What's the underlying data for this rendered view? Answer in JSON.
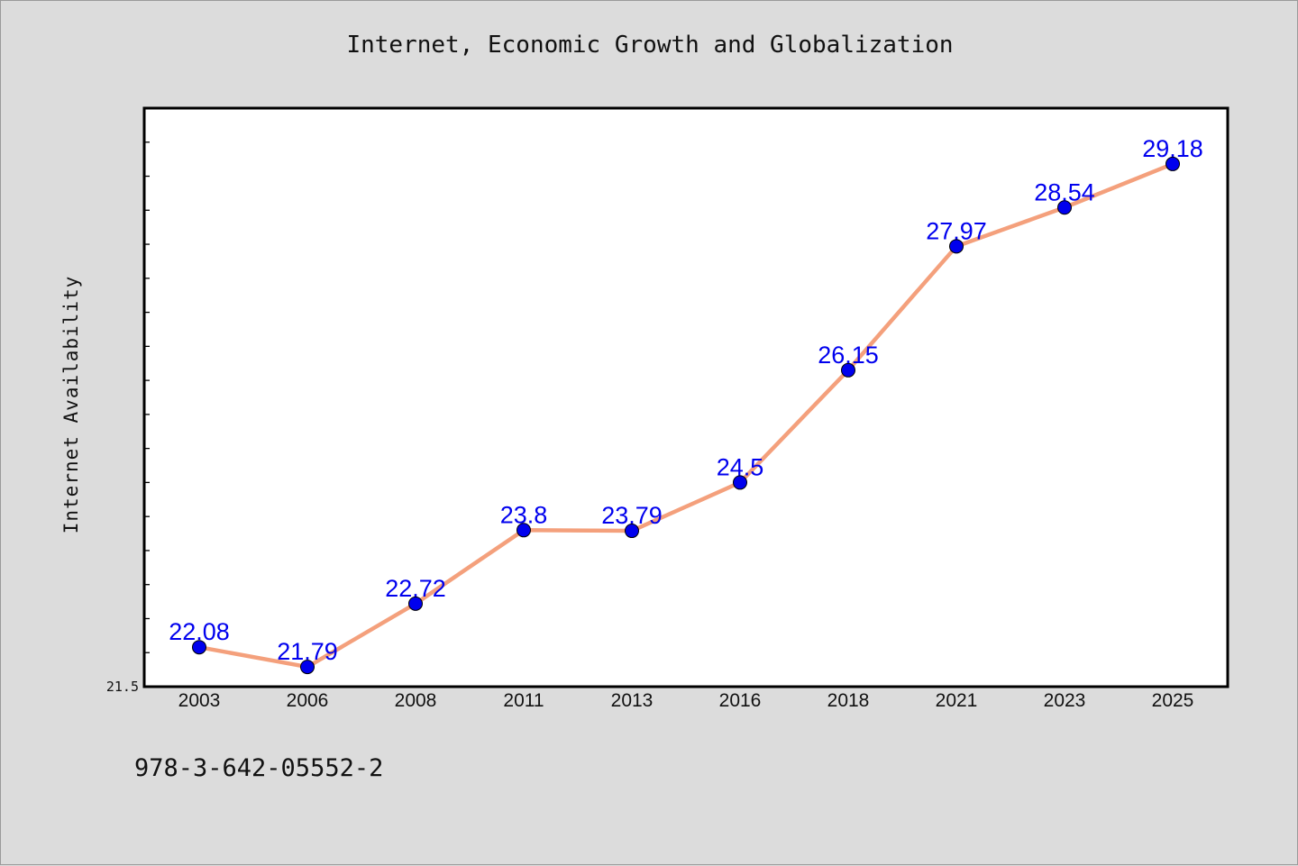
{
  "chart_data": {
    "type": "line",
    "title": "Internet, Economic Growth and Globalization",
    "xlabel": "",
    "ylabel": "Internet Availability",
    "categories": [
      "2003",
      "2006",
      "2008",
      "2011",
      "2013",
      "2016",
      "2018",
      "2021",
      "2023",
      "2025"
    ],
    "series": [
      {
        "values": [
          22.08,
          21.79,
          22.72,
          23.8,
          23.79,
          24.5,
          26.15,
          27.97,
          28.54,
          29.18
        ]
      }
    ],
    "ylim": [
      21.5,
      30.0
    ],
    "ytick_label": "21.5",
    "data_labels": [
      "22.08",
      "21.79",
      "22.72",
      "23.8",
      "23.79",
      "24.5",
      "26.15",
      "27.97",
      "28.54",
      "29.18"
    ],
    "grid": false,
    "legend": "none",
    "colors": {
      "line": "#f4a07c",
      "marker": "#0000ee",
      "label": "#0000ee",
      "plot_bg": "#ffffff",
      "figure_bg": "#dcdcdc"
    }
  },
  "footer": {
    "code": "978-3-642-05552-2"
  }
}
